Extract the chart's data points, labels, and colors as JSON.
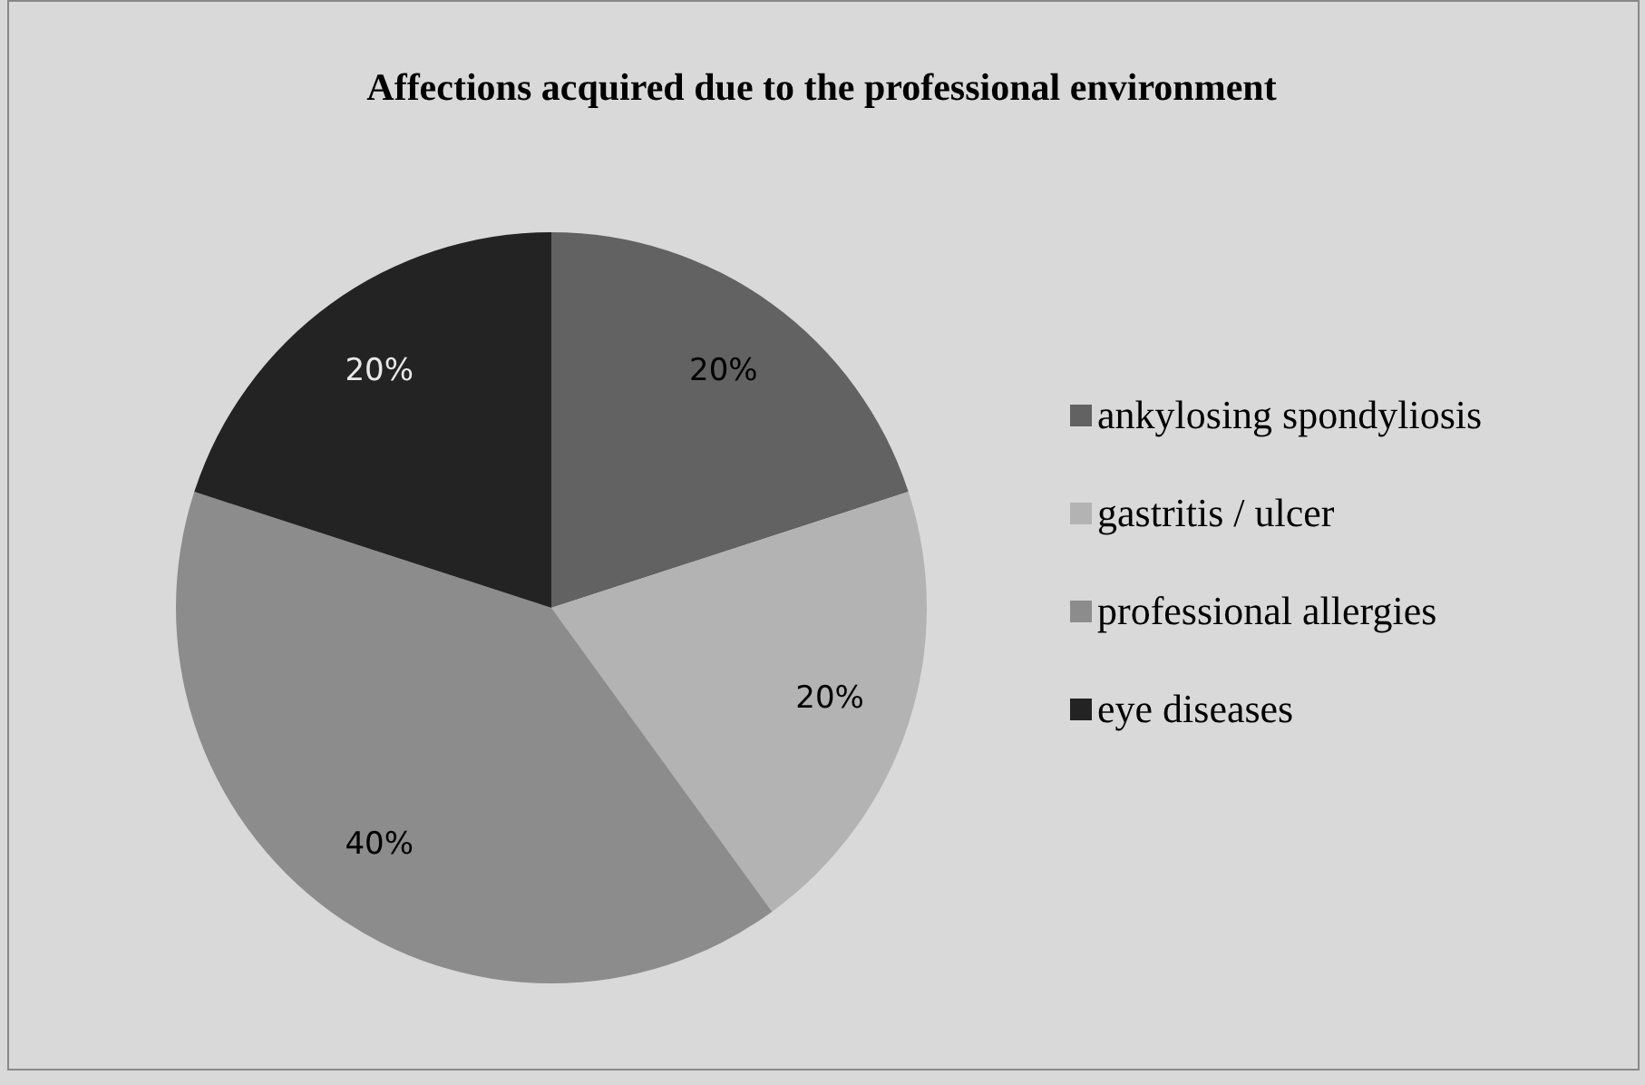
{
  "chart_data": {
    "type": "pie",
    "title": "Affections acquired due to the professional environment",
    "categories": [
      "ankylosing spondyliosis",
      "gastritis / ulcer",
      "professional allergies",
      "eye diseases"
    ],
    "values": [
      20,
      20,
      40,
      20
    ],
    "colors": [
      "#626262",
      "#b3b3b3",
      "#8c8c8c",
      "#232323"
    ],
    "value_labels": [
      "20%",
      "20%",
      "40%",
      "20%"
    ],
    "legend": "right"
  }
}
